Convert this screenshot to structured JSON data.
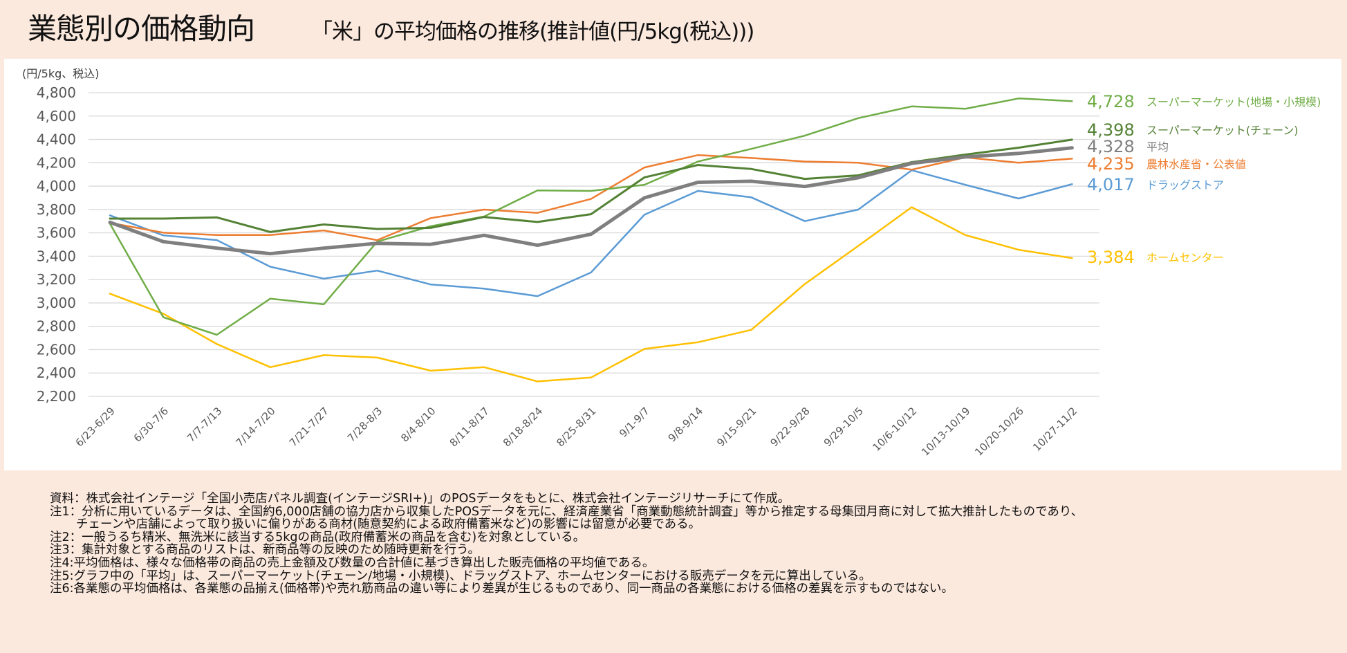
{
  "header": {
    "title": "業態別の価格動向",
    "subtitle": "「米」の平均価格の推移(推計値(円/5kg(税込)))"
  },
  "chart_data": {
    "type": "line",
    "title": "「米」の平均価格の推移(推計値(円/5kg(税込)))",
    "ylabel": "(円/5kg、税込)",
    "xlabel": "",
    "ylim": [
      2200,
      4800
    ],
    "yticks": [
      4800,
      4600,
      4400,
      4200,
      4000,
      3800,
      3600,
      3400,
      3200,
      3000,
      2800,
      2600,
      2400,
      2200
    ],
    "ytick_labels": [
      "4,800",
      "4,600",
      "4,400",
      "4,200",
      "4,000",
      "3,800",
      "3,600",
      "3,400",
      "3,200",
      "3,000",
      "2,800",
      "2,600",
      "2,400",
      "2,200"
    ],
    "grid": true,
    "legend": "right (end-of-line labels)",
    "categories": [
      "6/23-6/29",
      "6/30-7/6",
      "7/7-7/13",
      "7/14-7/20",
      "7/21-7/27",
      "7/28-8/3",
      "8/4-8/10",
      "8/11-8/17",
      "8/18-8/24",
      "8/25-8/31",
      "9/1-9/7",
      "9/8-9/14",
      "9/15-9/21",
      "9/22-9/28",
      "9/29-10/5",
      "10/6-10/12",
      "10/13-10/19",
      "10/20-10/26",
      "10/27-11/2"
    ],
    "series": [
      {
        "name": "スーパーマーケット(地場・小規模)",
        "last_label": "4,728",
        "color": "#70ad47",
        "width": 2.5,
        "values": [
          3678,
          2877,
          2727,
          3037,
          2988,
          3525,
          3657,
          3740,
          3963,
          3959,
          4012,
          4211,
          4319,
          4432,
          4582,
          4683,
          4662,
          4751,
          4728
        ]
      },
      {
        "name": "スーパーマーケット(チェーン)",
        "last_label": "4,398",
        "color": "#548235",
        "width": 3,
        "values": [
          3722,
          3722,
          3732,
          3607,
          3672,
          3633,
          3643,
          3736,
          3693,
          3760,
          4075,
          4181,
          4147,
          4062,
          4092,
          4205,
          4270,
          4329,
          4398
        ]
      },
      {
        "name": "平均",
        "last_label": "4,328",
        "color": "#7f7f7f",
        "width": 5,
        "values": [
          3690,
          3524,
          3469,
          3422,
          3469,
          3510,
          3502,
          3579,
          3494,
          3588,
          3900,
          4033,
          4042,
          3997,
          4072,
          4195,
          4250,
          4280,
          4328
        ]
      },
      {
        "name": "農林水産省・公表値",
        "last_label": "4,235",
        "color": "#ed7d31",
        "width": 2.5,
        "values": [
          3686,
          3601,
          3581,
          3581,
          3621,
          3538,
          3726,
          3799,
          3771,
          3890,
          4160,
          4266,
          4241,
          4211,
          4200,
          4141,
          4246,
          4200,
          4235
        ]
      },
      {
        "name": "ドラッグストア",
        "last_label": "4,017",
        "color": "#5b9bd5",
        "width": 2.5,
        "values": [
          3750,
          3578,
          3538,
          3310,
          3208,
          3277,
          3158,
          3123,
          3058,
          3261,
          3755,
          3959,
          3904,
          3700,
          3799,
          4136,
          4012,
          3894,
          4017
        ]
      },
      {
        "name": "ホームセンター",
        "last_label": "3,384",
        "color": "#ffc000",
        "width": 2.5,
        "values": [
          3079,
          2907,
          2648,
          2450,
          2553,
          2532,
          2420,
          2450,
          2328,
          2361,
          2606,
          2663,
          2770,
          3162,
          3488,
          3820,
          3582,
          3455,
          3384
        ]
      }
    ]
  },
  "notes": [
    "資料：株式会社インテージ「全国小売店パネル調査(インテージSRI+)」のPOSデータをもとに、株式会社インテージリサーチにて作成。",
    "注1：分析に用いているデータは、全国約6,000店舗の協力店から収集したPOSデータを元に、経済産業省「商業動態統計調査」等から推定する母集団月商に対して拡大推計したものであり、",
    "チェーンや店舗によって取り扱いに偏りがある商材(随意契約による政府備蓄米など)の影響には留意が必要である。",
    "注2：一般うるち精米、無洗米に該当する5kgの商品(政府備蓄米の商品を含む)を対象としている。",
    "注3：集計対象とする商品のリストは、新商品等の反映のため随時更新を行う。",
    "注4:平均価格は、様々な価格帯の商品の売上金額及び数量の合計値に基づき算出した販売価格の平均値である。",
    "注5:グラフ中の「平均」は、スーパーマーケット(チェーン/地場・小規模)、ドラッグストア、ホームセンターにおける販売データを元に算出している。",
    "注6:各業態の平均価格は、各業態の品揃え(価格帯)や売れ筋商品の違い等により差異が生じるものであり、同一商品の各業態における価格の差異を示すものではない。"
  ]
}
